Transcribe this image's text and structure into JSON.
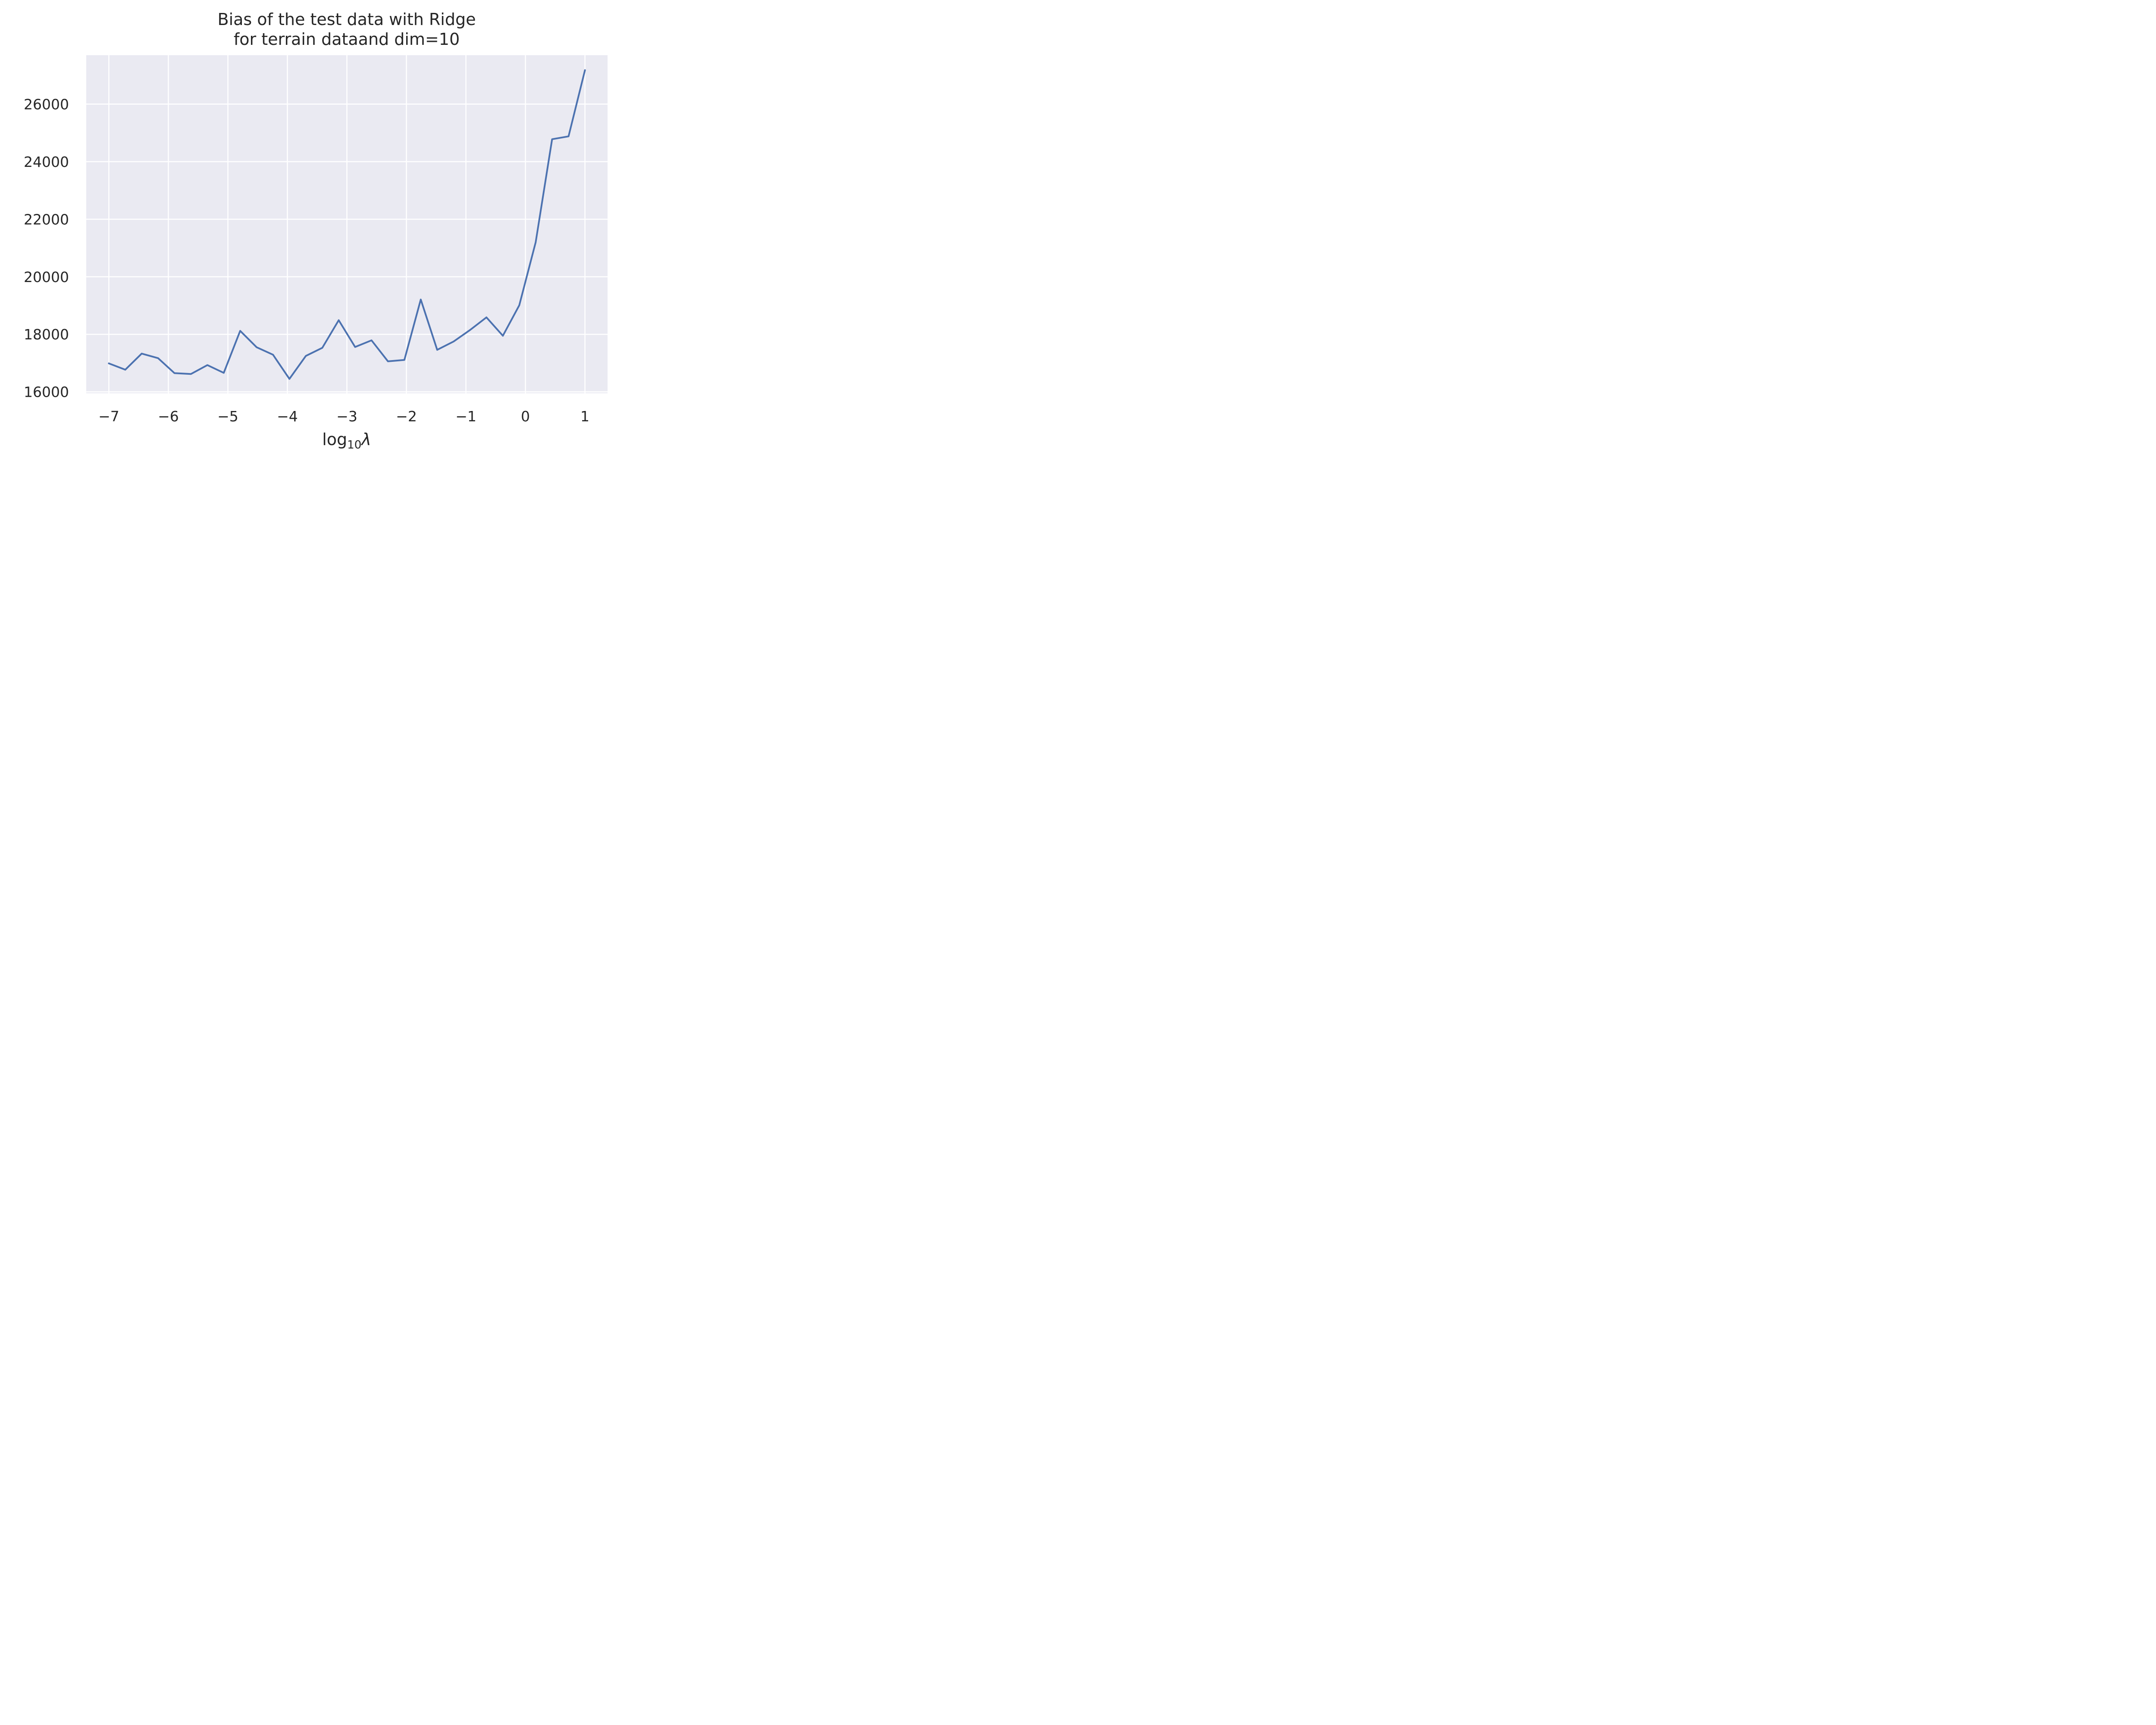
{
  "chart_data": {
    "type": "line",
    "title_line1": "Bias of the test data with Ridge",
    "title_line2": "for terrain dataand dim=10",
    "xlabel_base": "log",
    "xlabel_sub": "10",
    "xlabel_var": "λ",
    "ylabel": "",
    "xlim": [
      -7.38,
      1.38
    ],
    "ylim": [
      15950,
      27700
    ],
    "xticks": [
      -7,
      -6,
      -5,
      -4,
      -3,
      -2,
      -1,
      0,
      1
    ],
    "xtick_labels": [
      "−7",
      "−6",
      "−5",
      "−4",
      "−3",
      "−2",
      "−1",
      "0",
      "1"
    ],
    "yticks": [
      16000,
      18000,
      20000,
      22000,
      24000,
      26000
    ],
    "ytick_labels": [
      "16000",
      "18000",
      "20000",
      "22000",
      "24000",
      "26000"
    ],
    "grid": true,
    "colors": {
      "background": "#eaeaf2",
      "grid": "#ffffff",
      "line": "#4c72b0"
    },
    "series": [
      {
        "x": [
          -7.0,
          -6.724,
          -6.448,
          -6.172,
          -5.897,
          -5.621,
          -5.345,
          -5.069,
          -4.793,
          -4.517,
          -4.241,
          -3.966,
          -3.69,
          -3.414,
          -3.138,
          -2.862,
          -2.586,
          -2.31,
          -2.034,
          -1.759,
          -1.483,
          -1.207,
          -0.931,
          -0.655,
          -0.379,
          -0.103,
          0.172,
          0.448,
          0.724,
          1.0
        ],
        "values": [
          16990,
          16770,
          17330,
          17170,
          16650,
          16620,
          16930,
          16660,
          18120,
          17550,
          17290,
          16450,
          17250,
          17530,
          18490,
          17560,
          17790,
          17060,
          17110,
          19210,
          17460,
          17750,
          18150,
          18590,
          17950,
          19010,
          21200,
          24780,
          24880,
          27180
        ]
      }
    ]
  }
}
